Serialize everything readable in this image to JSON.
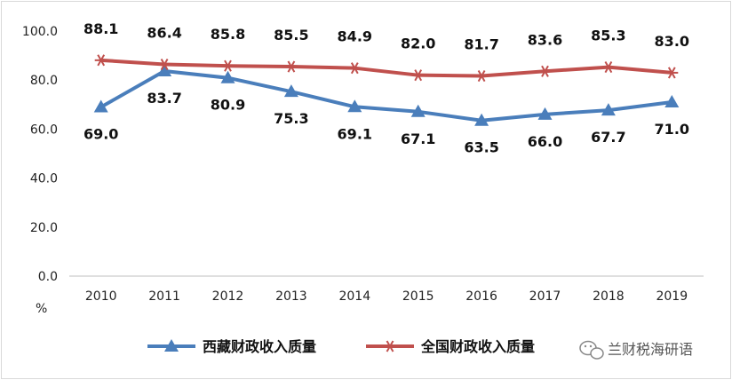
{
  "chart_data": {
    "type": "line",
    "categories": [
      "2010",
      "2011",
      "2012",
      "2013",
      "2014",
      "2015",
      "2016",
      "2017",
      "2018",
      "2019"
    ],
    "series": [
      {
        "name": "西藏财政收入质量",
        "values": [
          69.0,
          83.7,
          80.9,
          75.3,
          69.1,
          67.1,
          63.5,
          66.0,
          67.7,
          71.0
        ],
        "color": "#4a7ebb",
        "marker": "triangle",
        "labels_position": "below",
        "label_texts": [
          "69.0",
          "83.7",
          "80.9",
          "75.3",
          "69.1",
          "67.1",
          "63.5",
          "66.0",
          "67.7",
          "71.0"
        ]
      },
      {
        "name": "全国财政收入质量",
        "values": [
          88.1,
          86.4,
          85.8,
          85.5,
          84.9,
          82.0,
          81.7,
          83.6,
          85.3,
          83.0
        ],
        "color": "#c0504d",
        "marker": "star",
        "labels_position": "above",
        "label_texts": [
          "88.1",
          "86.4",
          "85.8",
          "85.5",
          "84.9",
          "82.0",
          "81.7",
          "83.6",
          "85.3",
          "83.0"
        ]
      }
    ],
    "y_ticks": [
      "0.0",
      "20.0",
      "40.0",
      "60.0",
      "80.0",
      "100.0"
    ],
    "ylim": [
      0,
      100
    ],
    "ylabel": "%",
    "xlabel": "",
    "title": "",
    "grid": false,
    "legend_position": "bottom"
  },
  "watermark": {
    "text": "兰财税海研语",
    "icon": "wechat-icon"
  }
}
